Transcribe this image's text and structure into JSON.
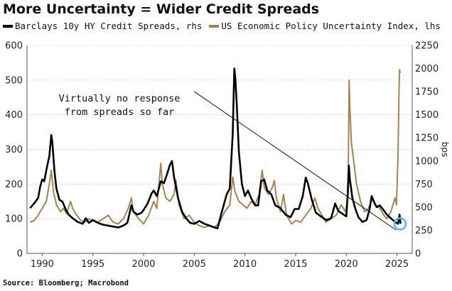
{
  "title": "More Uncertainty = Wider Credit Spreads",
  "source": "Source: Bloomberg; Macrobond",
  "chart_data": {
    "type": "line",
    "series": [
      {
        "name": "Barclays 10y HY Credit Spreads, rhs",
        "axis": "right",
        "color": "#000000",
        "points": [
          [
            1988.8,
            490
          ],
          [
            1989.2,
            540
          ],
          [
            1989.6,
            600
          ],
          [
            1989.8,
            720
          ],
          [
            1990.0,
            800
          ],
          [
            1990.2,
            780
          ],
          [
            1990.5,
            950
          ],
          [
            1990.7,
            1050
          ],
          [
            1990.9,
            1280
          ],
          [
            1991.0,
            1200
          ],
          [
            1991.2,
            900
          ],
          [
            1991.4,
            700
          ],
          [
            1991.7,
            580
          ],
          [
            1992.0,
            560
          ],
          [
            1992.3,
            480
          ],
          [
            1992.6,
            420
          ],
          [
            1993.0,
            380
          ],
          [
            1993.5,
            340
          ],
          [
            1994.0,
            320
          ],
          [
            1994.3,
            380
          ],
          [
            1994.6,
            330
          ],
          [
            1995.0,
            360
          ],
          [
            1995.5,
            330
          ],
          [
            1996.0,
            310
          ],
          [
            1996.5,
            300
          ],
          [
            1997.0,
            290
          ],
          [
            1997.5,
            280
          ],
          [
            1998.0,
            300
          ],
          [
            1998.4,
            330
          ],
          [
            1998.8,
            520
          ],
          [
            1999.0,
            450
          ],
          [
            1999.4,
            420
          ],
          [
            1999.8,
            440
          ],
          [
            2000.0,
            470
          ],
          [
            2000.4,
            540
          ],
          [
            2000.8,
            650
          ],
          [
            2001.0,
            680
          ],
          [
            2001.3,
            620
          ],
          [
            2001.7,
            780
          ],
          [
            2002.0,
            760
          ],
          [
            2002.3,
            850
          ],
          [
            2002.6,
            960
          ],
          [
            2002.8,
            1000
          ],
          [
            2003.0,
            830
          ],
          [
            2003.4,
            600
          ],
          [
            2003.8,
            450
          ],
          [
            2004.2,
            380
          ],
          [
            2004.6,
            330
          ],
          [
            2005.0,
            320
          ],
          [
            2005.5,
            350
          ],
          [
            2006.0,
            320
          ],
          [
            2006.5,
            300
          ],
          [
            2007.0,
            280
          ],
          [
            2007.3,
            270
          ],
          [
            2007.6,
            400
          ],
          [
            2007.9,
            520
          ],
          [
            2008.2,
            640
          ],
          [
            2008.5,
            700
          ],
          [
            2008.8,
            1300
          ],
          [
            2008.95,
            2000
          ],
          [
            2009.05,
            1900
          ],
          [
            2009.2,
            1600
          ],
          [
            2009.4,
            1100
          ],
          [
            2009.7,
            750
          ],
          [
            2010.0,
            620
          ],
          [
            2010.3,
            680
          ],
          [
            2010.6,
            600
          ],
          [
            2011.0,
            520
          ],
          [
            2011.3,
            520
          ],
          [
            2011.6,
            780
          ],
          [
            2011.9,
            800
          ],
          [
            2012.2,
            680
          ],
          [
            2012.6,
            640
          ],
          [
            2013.0,
            520
          ],
          [
            2013.5,
            490
          ],
          [
            2014.0,
            420
          ],
          [
            2014.5,
            390
          ],
          [
            2014.9,
            480
          ],
          [
            2015.3,
            480
          ],
          [
            2015.7,
            620
          ],
          [
            2016.0,
            820
          ],
          [
            2016.2,
            760
          ],
          [
            2016.6,
            580
          ],
          [
            2017.0,
            440
          ],
          [
            2017.5,
            400
          ],
          [
            2018.0,
            360
          ],
          [
            2018.5,
            380
          ],
          [
            2018.9,
            540
          ],
          [
            2019.2,
            460
          ],
          [
            2019.6,
            430
          ],
          [
            2020.0,
            400
          ],
          [
            2020.15,
            650
          ],
          [
            2020.25,
            950
          ],
          [
            2020.35,
            800
          ],
          [
            2020.6,
            600
          ],
          [
            2020.9,
            480
          ],
          [
            2021.2,
            390
          ],
          [
            2021.6,
            340
          ],
          [
            2022.0,
            360
          ],
          [
            2022.3,
            480
          ],
          [
            2022.5,
            620
          ],
          [
            2022.8,
            540
          ],
          [
            2023.0,
            500
          ],
          [
            2023.3,
            520
          ],
          [
            2023.6,
            480
          ],
          [
            2024.0,
            420
          ],
          [
            2024.4,
            380
          ],
          [
            2024.8,
            340
          ],
          [
            2025.1,
            320
          ],
          [
            2025.25,
            420
          ],
          [
            2025.35,
            320
          ]
        ]
      },
      {
        "name": "US Economic Policy Uncertainty Index, lhs",
        "axis": "left",
        "color": "#a9834f",
        "points": [
          [
            1988.8,
            90
          ],
          [
            1989.2,
            95
          ],
          [
            1989.6,
            110
          ],
          [
            1990.0,
            130
          ],
          [
            1990.4,
            150
          ],
          [
            1990.7,
            200
          ],
          [
            1990.9,
            240
          ],
          [
            1991.1,
            180
          ],
          [
            1991.4,
            140
          ],
          [
            1991.8,
            120
          ],
          [
            1992.1,
            130
          ],
          [
            1992.4,
            115
          ],
          [
            1992.8,
            150
          ],
          [
            1993.0,
            130
          ],
          [
            1993.4,
            110
          ],
          [
            1993.8,
            95
          ],
          [
            1994.2,
            90
          ],
          [
            1994.6,
            100
          ],
          [
            1995.0,
            95
          ],
          [
            1995.5,
            90
          ],
          [
            1996.0,
            100
          ],
          [
            1996.5,
            110
          ],
          [
            1997.0,
            90
          ],
          [
            1997.5,
            85
          ],
          [
            1998.0,
            100
          ],
          [
            1998.5,
            130
          ],
          [
            1998.8,
            160
          ],
          [
            1999.0,
            120
          ],
          [
            1999.5,
            100
          ],
          [
            2000.0,
            85
          ],
          [
            2000.5,
            110
          ],
          [
            2001.0,
            150
          ],
          [
            2001.3,
            130
          ],
          [
            2001.7,
            260
          ],
          [
            2001.85,
            200
          ],
          [
            2002.2,
            160
          ],
          [
            2002.6,
            150
          ],
          [
            2003.0,
            170
          ],
          [
            2003.2,
            210
          ],
          [
            2003.5,
            140
          ],
          [
            2004.0,
            100
          ],
          [
            2004.5,
            110
          ],
          [
            2005.0,
            90
          ],
          [
            2005.5,
            80
          ],
          [
            2006.0,
            75
          ],
          [
            2006.5,
            80
          ],
          [
            2007.0,
            75
          ],
          [
            2007.5,
            90
          ],
          [
            2008.0,
            120
          ],
          [
            2008.5,
            140
          ],
          [
            2008.8,
            220
          ],
          [
            2009.0,
            180
          ],
          [
            2009.4,
            150
          ],
          [
            2009.8,
            140
          ],
          [
            2010.2,
            130
          ],
          [
            2010.6,
            150
          ],
          [
            2011.0,
            140
          ],
          [
            2011.4,
            170
          ],
          [
            2011.7,
            240
          ],
          [
            2011.9,
            190
          ],
          [
            2012.3,
            170
          ],
          [
            2012.7,
            190
          ],
          [
            2012.9,
            210
          ],
          [
            2013.1,
            160
          ],
          [
            2013.5,
            120
          ],
          [
            2013.8,
            170
          ],
          [
            2014.1,
            110
          ],
          [
            2014.6,
            85
          ],
          [
            2015.0,
            95
          ],
          [
            2015.5,
            90
          ],
          [
            2016.0,
            110
          ],
          [
            2016.5,
            130
          ],
          [
            2016.9,
            160
          ],
          [
            2017.2,
            130
          ],
          [
            2017.6,
            110
          ],
          [
            2018.0,
            90
          ],
          [
            2018.5,
            100
          ],
          [
            2019.0,
            110
          ],
          [
            2019.5,
            140
          ],
          [
            2019.9,
            120
          ],
          [
            2020.1,
            150
          ],
          [
            2020.2,
            250
          ],
          [
            2020.28,
            500
          ],
          [
            2020.35,
            420
          ],
          [
            2020.5,
            320
          ],
          [
            2020.8,
            250
          ],
          [
            2021.0,
            200
          ],
          [
            2021.4,
            150
          ],
          [
            2021.8,
            120
          ],
          [
            2022.2,
            130
          ],
          [
            2022.6,
            160
          ],
          [
            2022.9,
            140
          ],
          [
            2023.3,
            130
          ],
          [
            2023.7,
            110
          ],
          [
            2024.0,
            100
          ],
          [
            2024.4,
            120
          ],
          [
            2024.8,
            160
          ],
          [
            2024.95,
            140
          ],
          [
            2025.1,
            280
          ],
          [
            2025.2,
            480
          ],
          [
            2025.25,
            530
          ],
          [
            2025.3,
            520
          ]
        ]
      }
    ],
    "left_axis": {
      "range": [
        0,
        600
      ],
      "ticks": [
        "0",
        "100",
        "200",
        "300",
        "400",
        "500",
        "600"
      ]
    },
    "right_axis": {
      "range": [
        0,
        2250
      ],
      "ticks": [
        "0",
        "250",
        "500",
        "750",
        "1000",
        "1250",
        "1500",
        "1750",
        "2000",
        "2250"
      ],
      "unit": "bps"
    },
    "x_axis": {
      "range": [
        1988.5,
        2026.5
      ],
      "ticks": [
        "1990",
        "1995",
        "2000",
        "2005",
        "2010",
        "2015",
        "2020",
        "2025"
      ]
    },
    "annotation": {
      "lines": [
        "Virtually no response",
        "from spreads so far"
      ],
      "arrow_from": [
        2005.0,
        445
      ],
      "arrow_to": [
        2024.9,
        530
      ],
      "circle_at": [
        2025.3,
        85
      ]
    },
    "grid": "horizontal",
    "legend": "top-left"
  }
}
